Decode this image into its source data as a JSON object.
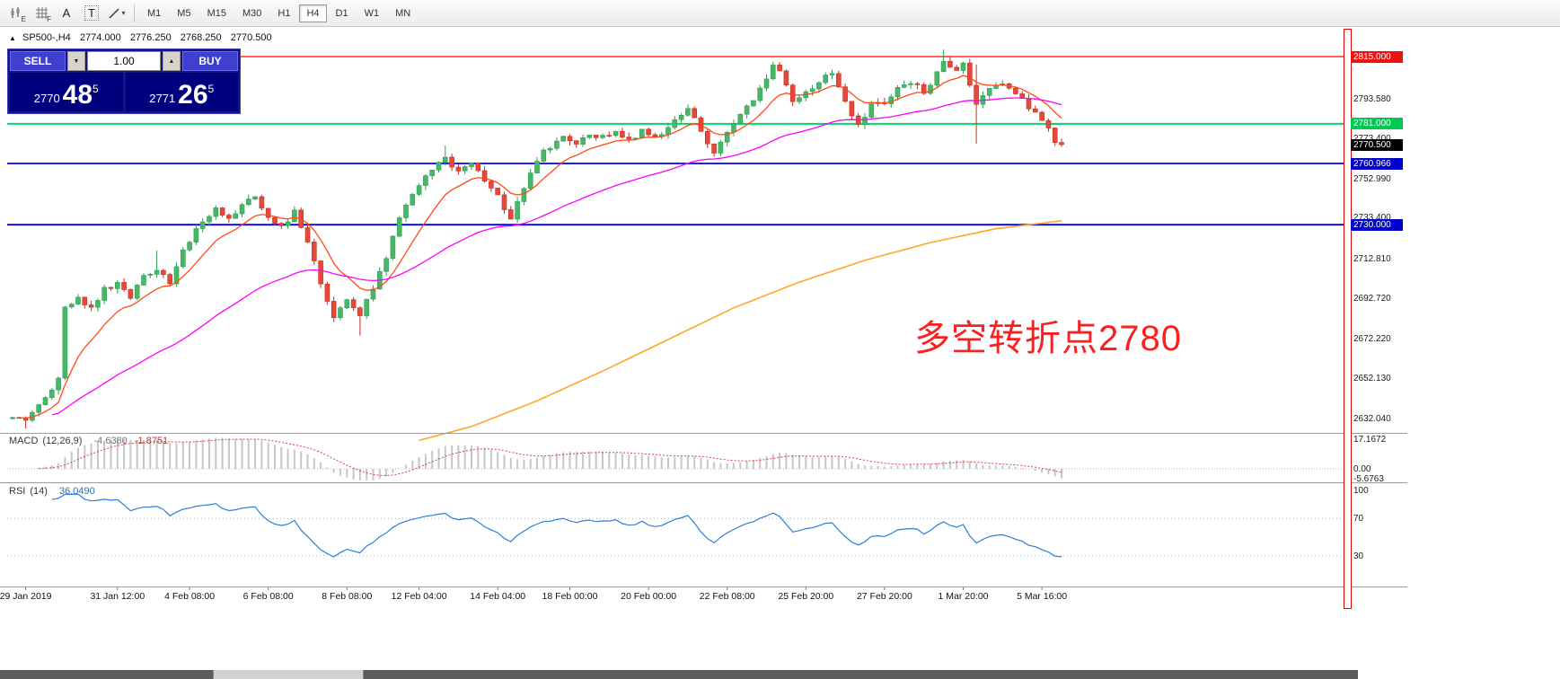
{
  "toolbar": {
    "icon_letters": {
      "e": "E",
      "f": "F",
      "a": "A",
      "t": "T",
      "caret": "▾"
    },
    "timeframes": [
      {
        "label": "M1",
        "active": false
      },
      {
        "label": "M5",
        "active": false
      },
      {
        "label": "M15",
        "active": false
      },
      {
        "label": "M30",
        "active": false
      },
      {
        "label": "H1",
        "active": false
      },
      {
        "label": "H4",
        "active": true
      },
      {
        "label": "D1",
        "active": false
      },
      {
        "label": "W1",
        "active": false
      },
      {
        "label": "MN",
        "active": false
      }
    ]
  },
  "chart": {
    "header": {
      "collapse_glyph": "▲",
      "symbol": "SP500-,H4",
      "open": "2774.000",
      "high": "2776.250",
      "low": "2768.250",
      "close": "2770.500"
    },
    "trade_panel": {
      "sell_label": "SELL",
      "buy_label": "BUY",
      "volume": "1.00",
      "down_glyph": "▼",
      "up_glyph": "▲",
      "sell_price": {
        "prefix": "2770",
        "big": "48",
        "sup": "5"
      },
      "buy_price": {
        "prefix": "2771",
        "big": "26",
        "sup": "5"
      }
    },
    "annotation": {
      "text": "多空转折点2780",
      "color": "#fb2020"
    }
  },
  "chart_data": {
    "type": "candlestick",
    "symbol": "SP500-",
    "timeframe": "H4",
    "ohlc": {
      "open": 2774.0,
      "high": 2776.25,
      "low": 2768.25,
      "close": 2770.5
    },
    "current_price": 2770.5,
    "candle_count": 161,
    "colors": {
      "bull": "#46b868",
      "bear": "#e8483a",
      "fast_ma": "#ff4a14",
      "medium_ma": "#ff00ff",
      "slow_ma": "#ffa626",
      "macd_hist": "#c6c6c6",
      "macd_signal": "#d84040",
      "rsi_line": "#2f7ed8"
    },
    "hlines": [
      {
        "value": 2815.0,
        "color": "#ff0000"
      },
      {
        "value": 2781.0,
        "color": "#00d465"
      },
      {
        "value": 2760.966,
        "color": "#0000ee"
      },
      {
        "value": 2730.0,
        "color": "#0000ee"
      }
    ],
    "price_axis": {
      "ticks": [
        2793.58,
        2773.4,
        2752.99,
        2733.4,
        2712.81,
        2692.72,
        2672.22,
        2652.13,
        2632.04
      ],
      "line_labels": [
        {
          "text": "2815.000",
          "price": 2815.0,
          "bg": "#ee1111"
        },
        {
          "text": "2781.000",
          "price": 2781.0,
          "bg": "#00c853"
        },
        {
          "text": "2770.500",
          "price": 2770.5,
          "bg": "#000000"
        },
        {
          "text": "2760.966",
          "price": 2760.966,
          "bg": "#0000cd"
        },
        {
          "text": "2730.000",
          "price": 2730.0,
          "bg": "#0000cd"
        }
      ]
    },
    "price_path_anchors": [
      [
        0,
        2634
      ],
      [
        2,
        2630
      ],
      [
        4,
        2638
      ],
      [
        6,
        2646
      ],
      [
        7,
        2651
      ],
      [
        8,
        2689
      ],
      [
        10,
        2693
      ],
      [
        12,
        2688
      ],
      [
        14,
        2697
      ],
      [
        16,
        2700
      ],
      [
        18,
        2694
      ],
      [
        20,
        2703
      ],
      [
        22,
        2708
      ],
      [
        24,
        2700
      ],
      [
        26,
        2716
      ],
      [
        27,
        2722
      ],
      [
        29,
        2732
      ],
      [
        31,
        2739
      ],
      [
        33,
        2733
      ],
      [
        35,
        2740
      ],
      [
        37,
        2743
      ],
      [
        39,
        2735
      ],
      [
        41,
        2728
      ],
      [
        43,
        2736
      ],
      [
        45,
        2720
      ],
      [
        47,
        2701
      ],
      [
        49,
        2684
      ],
      [
        51,
        2692
      ],
      [
        53,
        2684
      ],
      [
        55,
        2698
      ],
      [
        57,
        2714
      ],
      [
        59,
        2733
      ],
      [
        61,
        2746
      ],
      [
        62,
        2750
      ],
      [
        64,
        2758
      ],
      [
        66,
        2763
      ],
      [
        68,
        2757
      ],
      [
        70,
        2762
      ],
      [
        72,
        2752
      ],
      [
        74,
        2744
      ],
      [
        76,
        2733
      ],
      [
        78,
        2748
      ],
      [
        80,
        2763
      ],
      [
        82,
        2770
      ],
      [
        84,
        2775
      ],
      [
        86,
        2772
      ],
      [
        88,
        2776
      ],
      [
        90,
        2774
      ],
      [
        92,
        2777
      ],
      [
        94,
        2772
      ],
      [
        96,
        2778
      ],
      [
        98,
        2774
      ],
      [
        100,
        2780
      ],
      [
        102,
        2786
      ],
      [
        103,
        2789
      ],
      [
        105,
        2778
      ],
      [
        107,
        2765
      ],
      [
        109,
        2776
      ],
      [
        111,
        2786
      ],
      [
        113,
        2793
      ],
      [
        115,
        2804
      ],
      [
        116,
        2811
      ],
      [
        117,
        2808
      ],
      [
        119,
        2792
      ],
      [
        121,
        2796
      ],
      [
        123,
        2803
      ],
      [
        125,
        2807
      ],
      [
        127,
        2792
      ],
      [
        129,
        2781
      ],
      [
        131,
        2790
      ],
      [
        133,
        2791
      ],
      [
        135,
        2798
      ],
      [
        137,
        2802
      ],
      [
        139,
        2797
      ],
      [
        141,
        2806
      ],
      [
        142,
        2813
      ],
      [
        144,
        2809
      ],
      [
        145,
        2811
      ],
      [
        147,
        2791
      ],
      [
        149,
        2799
      ],
      [
        151,
        2802
      ],
      [
        153,
        2797
      ],
      [
        155,
        2789
      ],
      [
        157,
        2783
      ],
      [
        159,
        2772
      ],
      [
        160,
        2770.5
      ]
    ],
    "wick_overrides": {
      "2": {
        "low": 2627
      },
      "22": {
        "high": 2717
      },
      "53": {
        "low": 2674
      },
      "66": {
        "high": 2770
      },
      "142": {
        "high": 2818.5
      },
      "147": {
        "low": 2771,
        "high": 2811
      }
    },
    "moving_averages": [
      {
        "name": "fast-ma",
        "type": "ema",
        "period": 10
      },
      {
        "name": "medium-ma",
        "type": "ema",
        "period": 45
      },
      {
        "name": "slow-ma",
        "type": "anchors",
        "anchors": [
          [
            62,
            2621
          ],
          [
            70,
            2628
          ],
          [
            80,
            2641
          ],
          [
            90,
            2656
          ],
          [
            100,
            2672
          ],
          [
            110,
            2688
          ],
          [
            120,
            2701
          ],
          [
            130,
            2712
          ],
          [
            140,
            2721
          ],
          [
            150,
            2728
          ],
          [
            160,
            2732
          ]
        ]
      }
    ],
    "indicators": [
      {
        "name": "MACD",
        "params": "(12,26,9)",
        "value1": "-4.6380",
        "value2": "-1.8751",
        "axis_labels": [
          "17.1672",
          "0.00",
          "-5.6763"
        ],
        "axis_values": [
          17.1672,
          0,
          -5.6763
        ]
      },
      {
        "name": "RSI",
        "params": "(14)",
        "value": "36.0490",
        "axis_labels": [
          "100",
          "70",
          "30"
        ],
        "axis_values": [
          100,
          70,
          30
        ],
        "levels": [
          70,
          30
        ]
      }
    ],
    "x_axis": [
      {
        "label": "29 Jan 2019",
        "candle": 2
      },
      {
        "label": "31 Jan 12:00",
        "candle": 16
      },
      {
        "label": "4 Feb 08:00",
        "candle": 27
      },
      {
        "label": "6 Feb 08:00",
        "candle": 39
      },
      {
        "label": "8 Feb 08:00",
        "candle": 51
      },
      {
        "label": "12 Feb 04:00",
        "candle": 62
      },
      {
        "label": "14 Feb 04:00",
        "candle": 74
      },
      {
        "label": "18 Feb 00:00",
        "candle": 85
      },
      {
        "label": "20 Feb 00:00",
        "candle": 97
      },
      {
        "label": "22 Feb 08:00",
        "candle": 109
      },
      {
        "label": "25 Feb 20:00",
        "candle": 121
      },
      {
        "label": "27 Feb 20:00",
        "candle": 133
      },
      {
        "label": "1 Mar 20:00",
        "candle": 145
      },
      {
        "label": "5 Mar 16:00",
        "candle": 157
      }
    ]
  }
}
